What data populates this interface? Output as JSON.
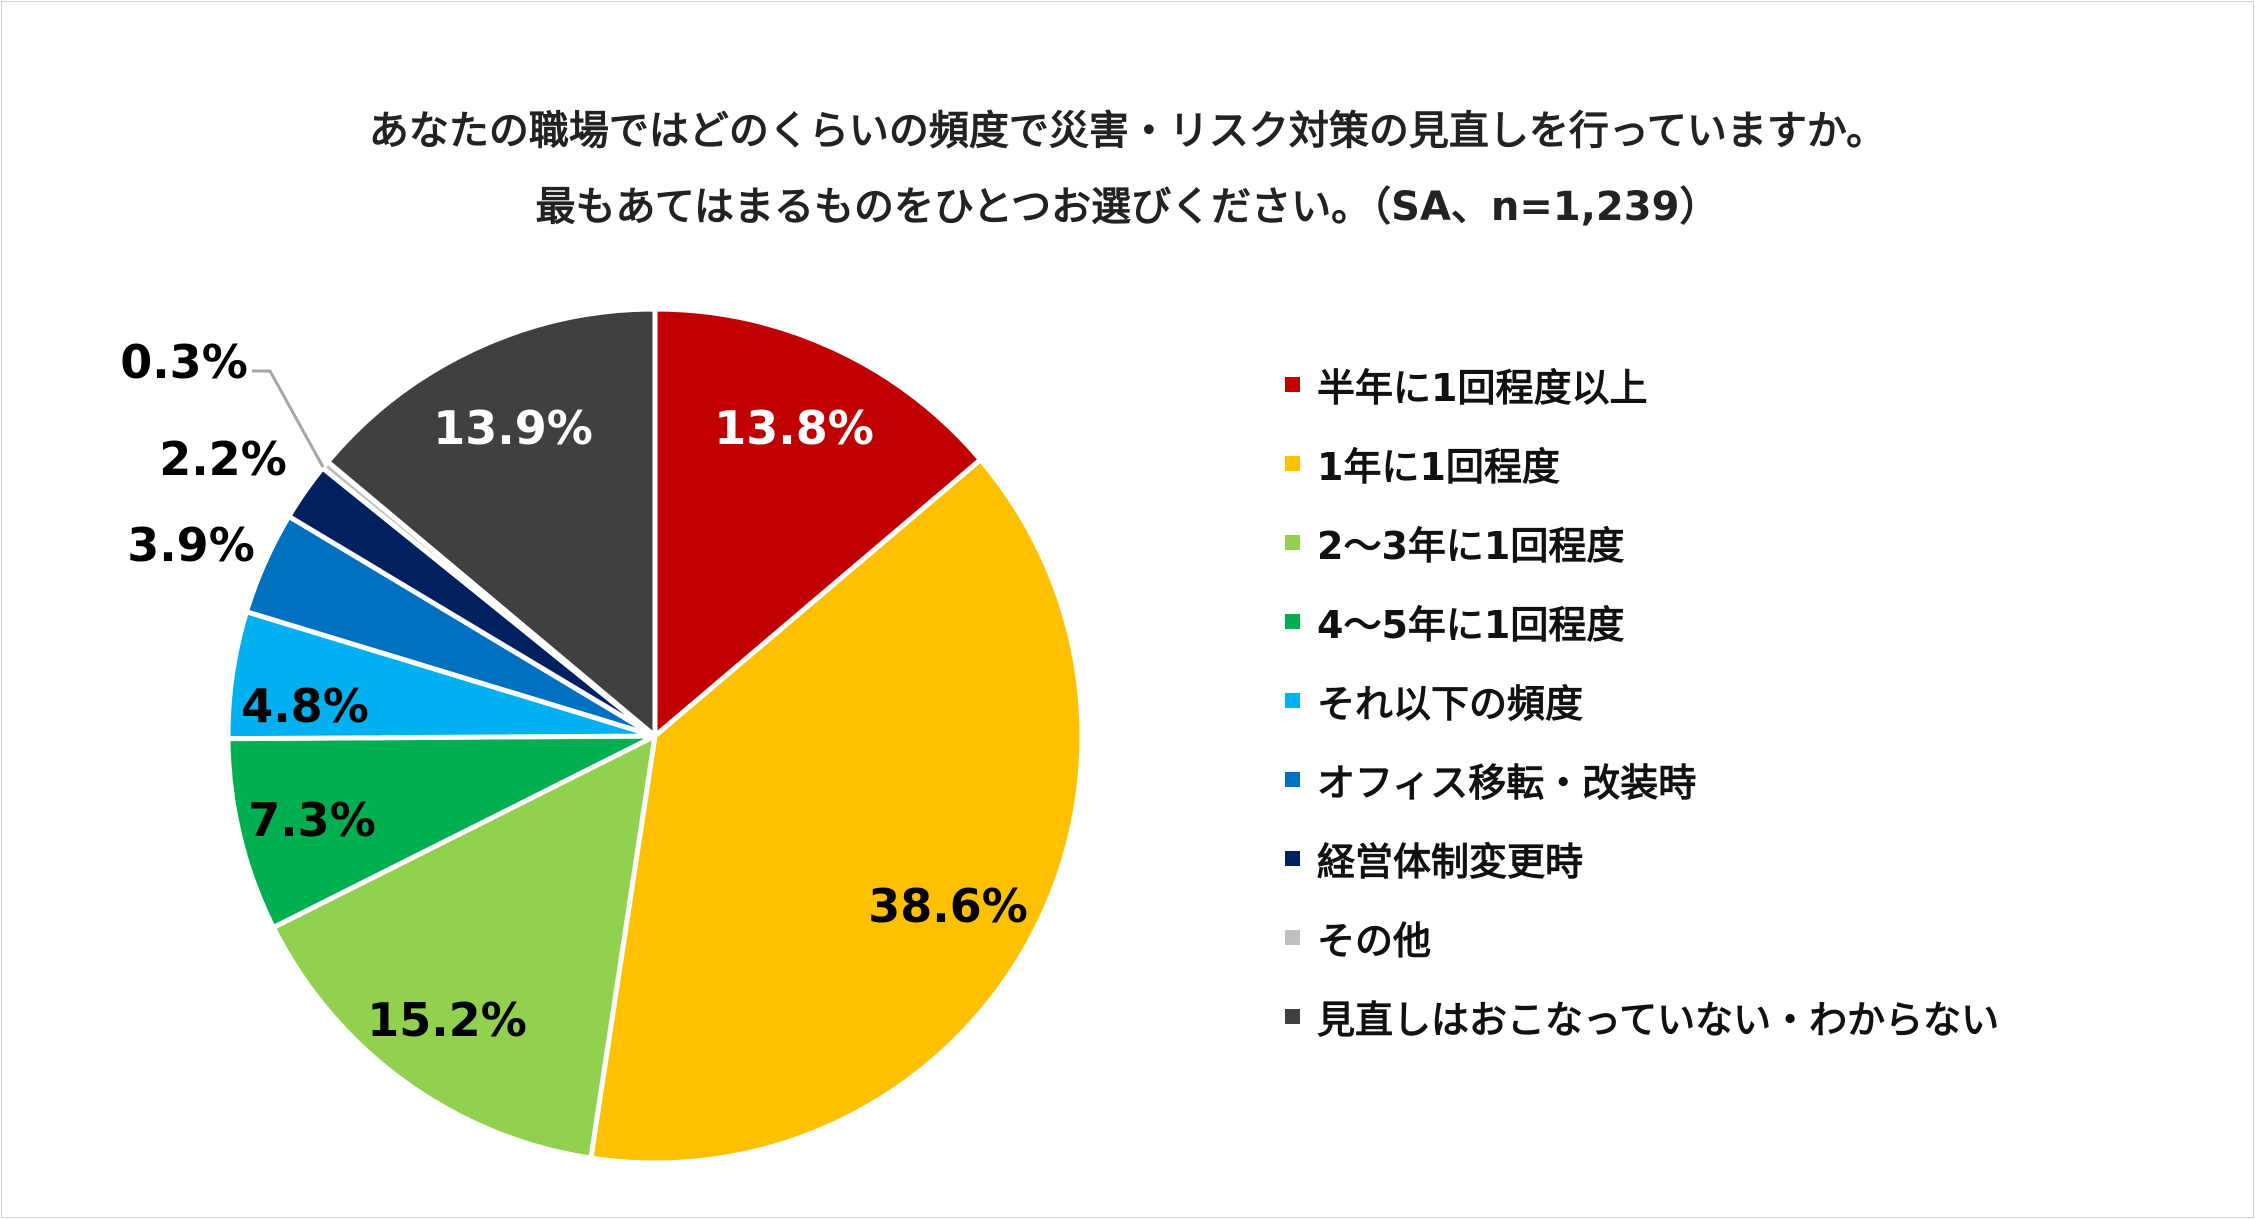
{
  "chart_data": {
    "type": "pie",
    "title_lines": [
      "あなたの職場ではどのくらいの頻度で災害・リスク対策の見直しを行っていますか。",
      "最もあてはまるものをひとつお選びください。（SA、n=1,239）"
    ],
    "categories": [
      "半年に1回程度以上",
      "1年に1回程度",
      "2〜3年に1回程度",
      "4〜5年に1回程度",
      "それ以下の頻度",
      "オフィス移転・改装時",
      "経営体制変更時",
      "その他",
      "見直しはおこなっていない・わからない"
    ],
    "values": [
      13.8,
      38.6,
      15.2,
      7.3,
      4.8,
      3.9,
      2.2,
      0.3,
      13.9
    ],
    "data_labels": [
      "13.8%",
      "38.6%",
      "15.2%",
      "7.3%",
      "4.8%",
      "3.9%",
      "2.2%",
      "0.3%",
      "13.9%"
    ],
    "colors": [
      "#C00000",
      "#FFC000",
      "#92D050",
      "#00B050",
      "#00B0F0",
      "#0070C0",
      "#002060",
      "#BFBFBF",
      "#404040"
    ],
    "label_colors": [
      "#ffffff",
      "#000000",
      "#000000",
      "#000000",
      "#000000",
      "#000000",
      "#000000",
      "#000000",
      "#ffffff"
    ],
    "start_angle": "top, clockwise",
    "legend_position": "right"
  }
}
